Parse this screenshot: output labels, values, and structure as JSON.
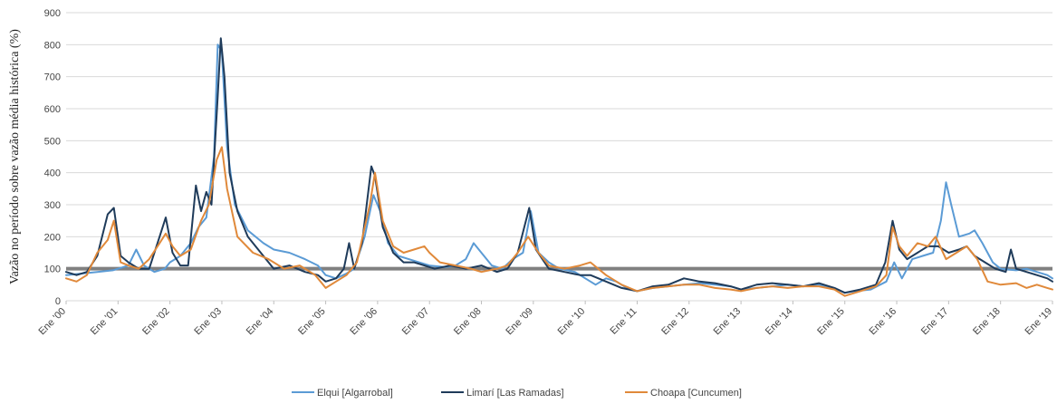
{
  "chart_data": {
    "type": "line",
    "title": "",
    "xlabel": "",
    "ylabel": "Vazão no período sobre vazão média histórica (%)",
    "ylim": [
      0,
      900
    ],
    "yticks": [
      0,
      100,
      200,
      300,
      400,
      500,
      600,
      700,
      800,
      900
    ],
    "xlim": [
      2000,
      2019
    ],
    "xticks": [
      {
        "x": 2000,
        "label": "Ene '00"
      },
      {
        "x": 2001,
        "label": "Ene '01"
      },
      {
        "x": 2002,
        "label": "Ene '02"
      },
      {
        "x": 2003,
        "label": "Ene '03"
      },
      {
        "x": 2004,
        "label": "Ene '04"
      },
      {
        "x": 2005,
        "label": "Ene '05"
      },
      {
        "x": 2006,
        "label": "Ene '06"
      },
      {
        "x": 2007,
        "label": "Ene '07"
      },
      {
        "x": 2008,
        "label": "Ene '08"
      },
      {
        "x": 2009,
        "label": "Ene '09"
      },
      {
        "x": 2010,
        "label": "Ene '10"
      },
      {
        "x": 2011,
        "label": "Ene '11"
      },
      {
        "x": 2012,
        "label": "Ene '12"
      },
      {
        "x": 2013,
        "label": "Ene '13"
      },
      {
        "x": 2014,
        "label": "Ene '14"
      },
      {
        "x": 2015,
        "label": "Ene '15"
      },
      {
        "x": 2016,
        "label": "Ene '16"
      },
      {
        "x": 2017,
        "label": "Ene '17"
      },
      {
        "x": 2018,
        "label": "Ene '18"
      },
      {
        "x": 2019,
        "label": "Ene '19"
      }
    ],
    "grid": "horizontal",
    "legend_position": "bottom",
    "reference_line": {
      "y": 100,
      "color": "#808080"
    },
    "series": [
      {
        "name": "Elqui [Algarrobal]",
        "color": "#5b9bd5",
        "points": [
          [
            2000.0,
            80
          ],
          [
            2000.3,
            85
          ],
          [
            2000.6,
            90
          ],
          [
            2000.9,
            95
          ],
          [
            2001.0,
            100
          ],
          [
            2001.2,
            110
          ],
          [
            2001.35,
            160
          ],
          [
            2001.5,
            110
          ],
          [
            2001.7,
            90
          ],
          [
            2001.9,
            100
          ],
          [
            2002.0,
            120
          ],
          [
            2002.2,
            140
          ],
          [
            2002.4,
            180
          ],
          [
            2002.55,
            230
          ],
          [
            2002.7,
            260
          ],
          [
            2002.85,
            450
          ],
          [
            2002.92,
            800
          ],
          [
            2003.0,
            780
          ],
          [
            2003.1,
            480
          ],
          [
            2003.25,
            300
          ],
          [
            2003.5,
            220
          ],
          [
            2003.8,
            180
          ],
          [
            2004.0,
            160
          ],
          [
            2004.3,
            150
          ],
          [
            2004.6,
            130
          ],
          [
            2004.85,
            110
          ],
          [
            2005.0,
            80
          ],
          [
            2005.2,
            70
          ],
          [
            2005.4,
            85
          ],
          [
            2005.55,
            100
          ],
          [
            2005.75,
            200
          ],
          [
            2005.92,
            330
          ],
          [
            2006.05,
            280
          ],
          [
            2006.2,
            180
          ],
          [
            2006.4,
            140
          ],
          [
            2006.6,
            130
          ],
          [
            2006.8,
            120
          ],
          [
            2007.0,
            110
          ],
          [
            2007.3,
            105
          ],
          [
            2007.5,
            110
          ],
          [
            2007.7,
            130
          ],
          [
            2007.85,
            180
          ],
          [
            2008.0,
            150
          ],
          [
            2008.2,
            110
          ],
          [
            2008.4,
            100
          ],
          [
            2008.6,
            130
          ],
          [
            2008.8,
            150
          ],
          [
            2008.95,
            280
          ],
          [
            2009.1,
            150
          ],
          [
            2009.3,
            120
          ],
          [
            2009.5,
            100
          ],
          [
            2009.8,
            90
          ],
          [
            2010.0,
            70
          ],
          [
            2010.2,
            50
          ],
          [
            2010.4,
            70
          ],
          [
            2010.6,
            60
          ],
          [
            2010.8,
            40
          ],
          [
            2011.0,
            30
          ],
          [
            2011.3,
            40
          ],
          [
            2011.6,
            45
          ],
          [
            2011.9,
            50
          ],
          [
            2012.2,
            55
          ],
          [
            2012.5,
            50
          ],
          [
            2012.8,
            45
          ],
          [
            2013.0,
            35
          ],
          [
            2013.3,
            40
          ],
          [
            2013.6,
            45
          ],
          [
            2013.9,
            50
          ],
          [
            2014.2,
            45
          ],
          [
            2014.5,
            50
          ],
          [
            2014.8,
            40
          ],
          [
            2015.0,
            25
          ],
          [
            2015.2,
            30
          ],
          [
            2015.5,
            35
          ],
          [
            2015.8,
            60
          ],
          [
            2015.95,
            120
          ],
          [
            2016.1,
            70
          ],
          [
            2016.3,
            130
          ],
          [
            2016.5,
            140
          ],
          [
            2016.7,
            150
          ],
          [
            2016.85,
            250
          ],
          [
            2016.95,
            370
          ],
          [
            2017.05,
            300
          ],
          [
            2017.2,
            200
          ],
          [
            2017.4,
            210
          ],
          [
            2017.5,
            220
          ],
          [
            2017.65,
            180
          ],
          [
            2017.85,
            120
          ],
          [
            2018.0,
            100
          ],
          [
            2018.3,
            95
          ],
          [
            2018.5,
            100
          ],
          [
            2018.7,
            90
          ],
          [
            2018.9,
            80
          ],
          [
            2019.0,
            70
          ]
        ]
      },
      {
        "name": "Limarí [Las Ramadas]",
        "color": "#1f3b5a",
        "points": [
          [
            2000.0,
            90
          ],
          [
            2000.2,
            80
          ],
          [
            2000.4,
            90
          ],
          [
            2000.6,
            140
          ],
          [
            2000.8,
            270
          ],
          [
            2000.92,
            290
          ],
          [
            2001.05,
            140
          ],
          [
            2001.2,
            120
          ],
          [
            2001.4,
            100
          ],
          [
            2001.6,
            100
          ],
          [
            2001.8,
            200
          ],
          [
            2001.92,
            260
          ],
          [
            2002.05,
            150
          ],
          [
            2002.2,
            110
          ],
          [
            2002.35,
            110
          ],
          [
            2002.5,
            360
          ],
          [
            2002.6,
            280
          ],
          [
            2002.7,
            340
          ],
          [
            2002.8,
            300
          ],
          [
            2002.92,
            640
          ],
          [
            2002.98,
            820
          ],
          [
            2003.05,
            700
          ],
          [
            2003.15,
            400
          ],
          [
            2003.3,
            280
          ],
          [
            2003.5,
            200
          ],
          [
            2003.75,
            150
          ],
          [
            2004.0,
            100
          ],
          [
            2004.3,
            110
          ],
          [
            2004.6,
            90
          ],
          [
            2004.85,
            80
          ],
          [
            2005.0,
            60
          ],
          [
            2005.2,
            70
          ],
          [
            2005.35,
            100
          ],
          [
            2005.45,
            180
          ],
          [
            2005.55,
            100
          ],
          [
            2005.7,
            180
          ],
          [
            2005.88,
            420
          ],
          [
            2005.95,
            390
          ],
          [
            2006.1,
            230
          ],
          [
            2006.3,
            150
          ],
          [
            2006.5,
            120
          ],
          [
            2006.7,
            120
          ],
          [
            2006.9,
            110
          ],
          [
            2007.1,
            100
          ],
          [
            2007.4,
            110
          ],
          [
            2007.7,
            100
          ],
          [
            2008.0,
            110
          ],
          [
            2008.3,
            90
          ],
          [
            2008.5,
            100
          ],
          [
            2008.7,
            150
          ],
          [
            2008.92,
            290
          ],
          [
            2009.05,
            160
          ],
          [
            2009.3,
            100
          ],
          [
            2009.6,
            90
          ],
          [
            2009.9,
            80
          ],
          [
            2010.1,
            80
          ],
          [
            2010.4,
            60
          ],
          [
            2010.7,
            40
          ],
          [
            2011.0,
            30
          ],
          [
            2011.3,
            45
          ],
          [
            2011.6,
            50
          ],
          [
            2011.9,
            70
          ],
          [
            2012.2,
            60
          ],
          [
            2012.5,
            55
          ],
          [
            2012.8,
            45
          ],
          [
            2013.0,
            35
          ],
          [
            2013.3,
            50
          ],
          [
            2013.6,
            55
          ],
          [
            2013.9,
            50
          ],
          [
            2014.2,
            45
          ],
          [
            2014.5,
            55
          ],
          [
            2014.8,
            40
          ],
          [
            2015.0,
            25
          ],
          [
            2015.3,
            35
          ],
          [
            2015.6,
            50
          ],
          [
            2015.78,
            120
          ],
          [
            2015.92,
            250
          ],
          [
            2016.05,
            160
          ],
          [
            2016.2,
            130
          ],
          [
            2016.4,
            150
          ],
          [
            2016.6,
            170
          ],
          [
            2016.8,
            170
          ],
          [
            2017.0,
            150
          ],
          [
            2017.2,
            160
          ],
          [
            2017.35,
            170
          ],
          [
            2017.5,
            140
          ],
          [
            2017.7,
            120
          ],
          [
            2017.9,
            100
          ],
          [
            2018.1,
            90
          ],
          [
            2018.2,
            160
          ],
          [
            2018.3,
            100
          ],
          [
            2018.5,
            90
          ],
          [
            2018.7,
            80
          ],
          [
            2018.9,
            70
          ],
          [
            2019.0,
            60
          ]
        ]
      },
      {
        "name": "Choapa [Cuncumen]",
        "color": "#e0893a",
        "points": [
          [
            2000.0,
            70
          ],
          [
            2000.2,
            60
          ],
          [
            2000.4,
            80
          ],
          [
            2000.6,
            150
          ],
          [
            2000.8,
            190
          ],
          [
            2000.92,
            250
          ],
          [
            2001.05,
            120
          ],
          [
            2001.2,
            110
          ],
          [
            2001.4,
            100
          ],
          [
            2001.6,
            130
          ],
          [
            2001.8,
            180
          ],
          [
            2001.92,
            210
          ],
          [
            2002.05,
            170
          ],
          [
            2002.2,
            140
          ],
          [
            2002.4,
            160
          ],
          [
            2002.6,
            250
          ],
          [
            2002.75,
            300
          ],
          [
            2002.9,
            440
          ],
          [
            2003.0,
            480
          ],
          [
            2003.1,
            350
          ],
          [
            2003.3,
            200
          ],
          [
            2003.6,
            150
          ],
          [
            2003.9,
            130
          ],
          [
            2004.2,
            100
          ],
          [
            2004.5,
            110
          ],
          [
            2004.8,
            80
          ],
          [
            2005.0,
            40
          ],
          [
            2005.2,
            60
          ],
          [
            2005.4,
            80
          ],
          [
            2005.6,
            120
          ],
          [
            2005.85,
            300
          ],
          [
            2005.95,
            400
          ],
          [
            2006.1,
            250
          ],
          [
            2006.3,
            170
          ],
          [
            2006.5,
            150
          ],
          [
            2006.7,
            160
          ],
          [
            2006.9,
            170
          ],
          [
            2007.0,
            150
          ],
          [
            2007.2,
            120
          ],
          [
            2007.5,
            110
          ],
          [
            2007.8,
            100
          ],
          [
            2008.0,
            90
          ],
          [
            2008.3,
            100
          ],
          [
            2008.5,
            110
          ],
          [
            2008.7,
            150
          ],
          [
            2008.9,
            200
          ],
          [
            2009.1,
            150
          ],
          [
            2009.3,
            110
          ],
          [
            2009.6,
            100
          ],
          [
            2009.9,
            110
          ],
          [
            2010.1,
            120
          ],
          [
            2010.4,
            80
          ],
          [
            2010.7,
            50
          ],
          [
            2011.0,
            30
          ],
          [
            2011.3,
            40
          ],
          [
            2011.6,
            45
          ],
          [
            2011.9,
            50
          ],
          [
            2012.2,
            50
          ],
          [
            2012.5,
            40
          ],
          [
            2012.8,
            35
          ],
          [
            2013.0,
            30
          ],
          [
            2013.3,
            40
          ],
          [
            2013.6,
            45
          ],
          [
            2013.9,
            40
          ],
          [
            2014.2,
            45
          ],
          [
            2014.5,
            45
          ],
          [
            2014.8,
            35
          ],
          [
            2015.0,
            15
          ],
          [
            2015.3,
            30
          ],
          [
            2015.6,
            45
          ],
          [
            2015.8,
            80
          ],
          [
            2015.92,
            230
          ],
          [
            2016.05,
            170
          ],
          [
            2016.2,
            140
          ],
          [
            2016.4,
            180
          ],
          [
            2016.6,
            170
          ],
          [
            2016.75,
            200
          ],
          [
            2016.95,
            130
          ],
          [
            2017.15,
            150
          ],
          [
            2017.35,
            170
          ],
          [
            2017.55,
            130
          ],
          [
            2017.75,
            60
          ],
          [
            2018.0,
            50
          ],
          [
            2018.3,
            55
          ],
          [
            2018.5,
            40
          ],
          [
            2018.7,
            50
          ],
          [
            2018.9,
            40
          ],
          [
            2019.0,
            35
          ]
        ]
      }
    ]
  }
}
